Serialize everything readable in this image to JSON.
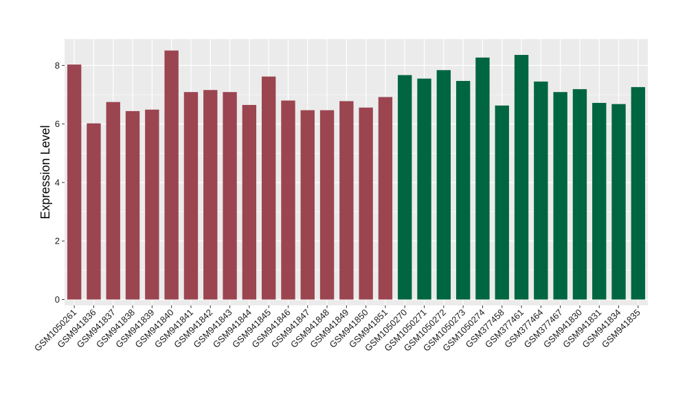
{
  "chart_data": {
    "type": "bar",
    "xlabel": "",
    "ylabel": "Expression Level",
    "ylim": [
      -0.2,
      8.9
    ],
    "yticks": [
      0,
      2,
      4,
      6,
      8
    ],
    "grid": true,
    "legend": "none",
    "categories": [
      "GSM1050261",
      "GSM941836",
      "GSM941837",
      "GSM941838",
      "GSM941839",
      "GSM941840",
      "GSM941841",
      "GSM941842",
      "GSM941843",
      "GSM941844",
      "GSM941845",
      "GSM941846",
      "GSM941847",
      "GSM941848",
      "GSM941849",
      "GSM941850",
      "GSM941851",
      "GSM1050270",
      "GSM1050271",
      "GSM1050272",
      "GSM1050273",
      "GSM1050274",
      "GSM377458",
      "GSM377461",
      "GSM377464",
      "GSM377467",
      "GSM941830",
      "GSM941831",
      "GSM941834",
      "GSM941835"
    ],
    "values": [
      8.03,
      6.02,
      6.75,
      6.44,
      6.49,
      8.51,
      7.09,
      7.16,
      7.09,
      6.65,
      7.62,
      6.8,
      6.47,
      6.47,
      6.78,
      6.56,
      6.92,
      7.67,
      7.55,
      7.84,
      7.47,
      8.27,
      6.63,
      8.36,
      7.45,
      7.09,
      7.19,
      6.72,
      6.68,
      7.26
    ],
    "group_colors": [
      "#9b4550",
      "#006641"
    ],
    "bar_groups": [
      0,
      0,
      0,
      0,
      0,
      0,
      0,
      0,
      0,
      0,
      0,
      0,
      0,
      0,
      0,
      0,
      0,
      1,
      1,
      1,
      1,
      1,
      1,
      1,
      1,
      1,
      1,
      1,
      1,
      1
    ],
    "panel_color": "#ebebeb",
    "grid_color": "#ffffff"
  }
}
